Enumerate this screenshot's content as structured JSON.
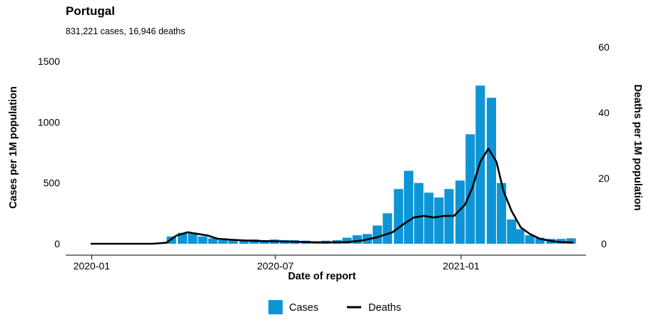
{
  "chart_data": {
    "type": "bar",
    "title": "Portugal",
    "subtitle": "831,221 cases, 16,946 deaths",
    "xlabel": "Date of report",
    "ylabel_left": "Cases per 1M population",
    "ylabel_right": "Deaths per 1M population",
    "x_range": [
      "2019-12-31",
      "2021-04-22"
    ],
    "ylim_left": [
      0,
      1600
    ],
    "ylim_right": [
      0,
      60
    ],
    "x_ticks": [
      "2020-01",
      "2020-07",
      "2021-01"
    ],
    "y_ticks_left": [
      0,
      500,
      1000,
      1500
    ],
    "y_ticks_right": [
      0,
      20,
      40,
      60
    ],
    "legend_position": "bottom",
    "grid": false,
    "colors": {
      "cases": "#0e95d6",
      "deaths": "#000000"
    },
    "series": [
      {
        "name": "Cases",
        "type": "bar",
        "axis": "left",
        "x": [
          "2020-03-10",
          "2020-03-20",
          "2020-03-31",
          "2020-04-10",
          "2020-04-20",
          "2020-04-30",
          "2020-05-10",
          "2020-05-20",
          "2020-05-31",
          "2020-06-10",
          "2020-06-20",
          "2020-06-30",
          "2020-07-10",
          "2020-07-20",
          "2020-07-31",
          "2020-08-10",
          "2020-08-20",
          "2020-08-31",
          "2020-09-10",
          "2020-09-20",
          "2020-09-30",
          "2020-10-10",
          "2020-10-20",
          "2020-10-31",
          "2020-11-10",
          "2020-11-20",
          "2020-11-30",
          "2020-12-10",
          "2020-12-20",
          "2020-12-31",
          "2021-01-10",
          "2021-01-20",
          "2021-01-31",
          "2021-02-10",
          "2021-02-20",
          "2021-02-28",
          "2021-03-10",
          "2021-03-20",
          "2021-03-31",
          "2021-04-10",
          "2021-04-20"
        ],
        "values": [
          5,
          60,
          90,
          85,
          60,
          45,
          30,
          30,
          30,
          35,
          30,
          35,
          30,
          30,
          25,
          20,
          25,
          30,
          50,
          70,
          80,
          150,
          250,
          450,
          600,
          500,
          420,
          380,
          450,
          520,
          900,
          1300,
          1200,
          500,
          200,
          120,
          70,
          50,
          40,
          40,
          45
        ]
      },
      {
        "name": "Deaths",
        "type": "line",
        "axis": "right",
        "x": [
          "2019-12-31",
          "2020-03-01",
          "2020-03-15",
          "2020-03-25",
          "2020-04-05",
          "2020-04-15",
          "2020-04-25",
          "2020-05-05",
          "2020-05-20",
          "2020-06-01",
          "2020-06-20",
          "2020-07-10",
          "2020-08-01",
          "2020-08-20",
          "2020-09-10",
          "2020-09-25",
          "2020-10-10",
          "2020-10-25",
          "2020-11-05",
          "2020-11-15",
          "2020-11-25",
          "2020-12-05",
          "2020-12-15",
          "2020-12-25",
          "2021-01-05",
          "2021-01-12",
          "2021-01-20",
          "2021-01-28",
          "2021-02-05",
          "2021-02-12",
          "2021-02-20",
          "2021-03-01",
          "2021-03-10",
          "2021-03-20",
          "2021-04-01",
          "2021-04-10",
          "2021-04-22"
        ],
        "values": [
          0,
          0,
          0.3,
          2.5,
          3.5,
          3,
          2.5,
          1.5,
          1.2,
          1,
          0.8,
          0.7,
          0.5,
          0.4,
          0.5,
          1,
          2,
          3.5,
          6,
          8,
          8.5,
          8,
          8.5,
          8.5,
          12,
          17,
          25,
          29,
          25,
          16,
          10,
          5,
          3,
          1.5,
          0.8,
          0.5,
          0.4
        ]
      }
    ]
  }
}
